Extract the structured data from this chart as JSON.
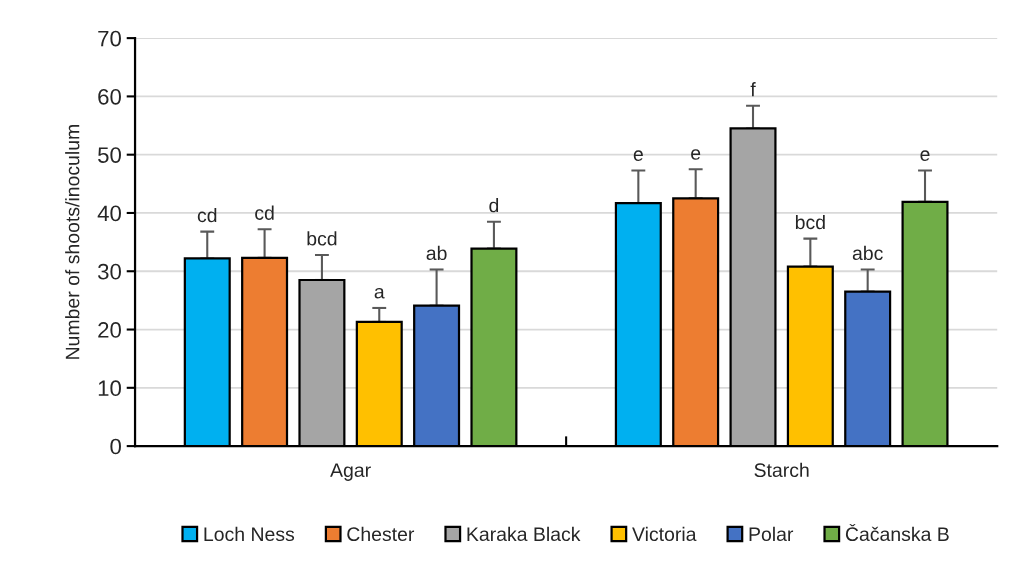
{
  "chart_data": {
    "type": "bar",
    "ylabel": "Number of shoots/inoculum",
    "categories": [
      "Agar",
      "Starch"
    ],
    "series": [
      {
        "name": "Loch Ness",
        "color": "#00b0f0",
        "values": [
          32.2,
          41.7
        ],
        "errors": [
          [
            32.2,
            36.8
          ],
          [
            41.7,
            47.3
          ]
        ],
        "value_labels": [
          "cd",
          "e"
        ]
      },
      {
        "name": "Chester",
        "color": "#ed7d31",
        "values": [
          32.3,
          42.5
        ],
        "errors": [
          [
            32.3,
            37.2
          ],
          [
            42.5,
            47.5
          ]
        ],
        "value_labels": [
          "cd",
          "e"
        ]
      },
      {
        "name": "Karaka Black",
        "color": "#a5a5a5",
        "values": [
          28.5,
          54.5
        ],
        "errors": [
          [
            28.5,
            32.8
          ],
          [
            54.5,
            58.4
          ]
        ],
        "value_labels": [
          "bcd",
          "f"
        ]
      },
      {
        "name": "Victoria",
        "color": "#ffc000",
        "values": [
          21.3,
          30.8
        ],
        "errors": [
          [
            21.3,
            23.7
          ],
          [
            30.8,
            35.6
          ]
        ],
        "value_labels": [
          "a",
          "bcd"
        ]
      },
      {
        "name": "Polar",
        "color": "#4472c4",
        "values": [
          24.1,
          26.5
        ],
        "errors": [
          [
            24.1,
            30.3
          ],
          [
            26.5,
            30.3
          ]
        ],
        "value_labels": [
          "ab",
          "abc"
        ]
      },
      {
        "name": "Čačanska B",
        "color": "#70ad47",
        "values": [
          33.9,
          41.9
        ],
        "errors": [
          [
            33.9,
            38.5
          ],
          [
            41.9,
            47.3
          ]
        ],
        "value_labels": [
          "d",
          "e"
        ]
      }
    ],
    "ylim": [
      0,
      70
    ],
    "yticks": [
      0,
      10,
      20,
      30,
      40,
      50,
      60,
      70
    ],
    "grid": "y",
    "legend": "bottom"
  }
}
